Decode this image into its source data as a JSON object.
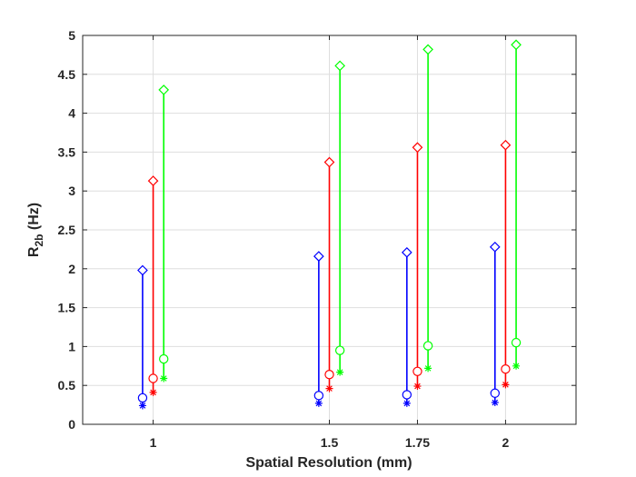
{
  "chart_data": {
    "type": "errorbar",
    "xlabel": "Spatial Resolution (mm)",
    "ylabel_main": "R",
    "ylabel_sub": "2b",
    "ylabel_unit": " (Hz)",
    "xlim": [
      0.8,
      2.2
    ],
    "ylim": [
      0,
      5
    ],
    "xticks": [
      1,
      1.5,
      1.75,
      2
    ],
    "xtick_labels": [
      "1",
      "1.5",
      "1.75",
      "2"
    ],
    "yticks": [
      0,
      0.5,
      1,
      1.5,
      2,
      2.5,
      3,
      3.5,
      4,
      4.5,
      5
    ],
    "ytick_labels": [
      "0",
      "0.5",
      "1",
      "1.5",
      "2",
      "2.5",
      "3",
      "3.5",
      "4",
      "4.5",
      "5"
    ],
    "grid": true,
    "series": [
      {
        "name": "blue",
        "color": "#0000ff",
        "x_offset": -0.03,
        "x": [
          1,
          1.5,
          1.75,
          2
        ],
        "star": [
          0.24,
          0.27,
          0.27,
          0.28
        ],
        "circle": [
          0.34,
          0.37,
          0.38,
          0.4
        ],
        "diamond": [
          1.98,
          2.16,
          2.21,
          2.28
        ]
      },
      {
        "name": "red",
        "color": "#ff0000",
        "x_offset": 0,
        "x": [
          1,
          1.5,
          1.75,
          2
        ],
        "star": [
          0.41,
          0.46,
          0.49,
          0.51
        ],
        "circle": [
          0.59,
          0.64,
          0.68,
          0.71
        ],
        "diamond": [
          3.13,
          3.37,
          3.56,
          3.59
        ]
      },
      {
        "name": "green",
        "color": "#00ff00",
        "x_offset": 0.03,
        "x": [
          1,
          1.5,
          1.75,
          2
        ],
        "star": [
          0.59,
          0.67,
          0.72,
          0.75
        ],
        "circle": [
          0.84,
          0.95,
          1.01,
          1.05
        ],
        "diamond": [
          4.3,
          4.61,
          4.82,
          4.88
        ]
      }
    ]
  }
}
